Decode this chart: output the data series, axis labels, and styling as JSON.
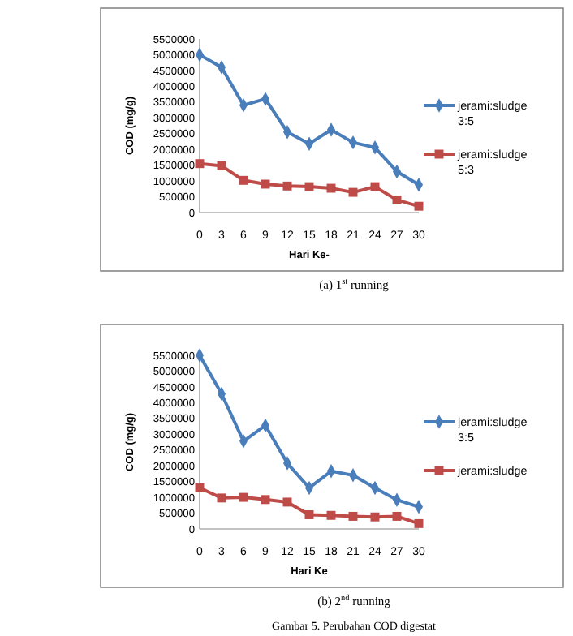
{
  "chart_data": [
    {
      "type": "line",
      "xlabel": "Hari Ke-",
      "ylabel": "COD (mg/g)",
      "categories": [
        "0",
        "3",
        "6",
        "9",
        "12",
        "15",
        "18",
        "21",
        "24",
        "27",
        "30"
      ],
      "ylim": [
        0,
        5500000
      ],
      "yticks": [
        0,
        500000,
        1000000,
        1500000,
        2000000,
        2500000,
        3000000,
        3500000,
        4000000,
        4500000,
        5000000,
        5500000
      ],
      "grid": false,
      "legend": "right",
      "line_style": "solid",
      "annotations": [
        "(a) 1$^{st}$ running"
      ],
      "series": [
        {
          "name": "jerami:sludge 3:5",
          "color": "#4a7ebb",
          "marker": "diamond",
          "values": [
            5000000,
            4600000,
            3400000,
            3600000,
            2550000,
            2180000,
            2620000,
            2220000,
            2060000,
            1300000,
            880000
          ]
        },
        {
          "name": "jerami:sludge 5:3",
          "color": "#be4b48",
          "marker": "square",
          "values": [
            1550000,
            1480000,
            1020000,
            900000,
            840000,
            820000,
            770000,
            640000,
            820000,
            400000,
            200000
          ]
        }
      ]
    },
    {
      "type": "line",
      "xlabel": "Hari Ke",
      "ylabel": "COD (mg/g)",
      "categories": [
        "0",
        "3",
        "6",
        "9",
        "12",
        "15",
        "18",
        "21",
        "24",
        "27",
        "30"
      ],
      "ylim": [
        0,
        5500000
      ],
      "yticks": [
        0,
        500000,
        1000000,
        1500000,
        2000000,
        2500000,
        3000000,
        3500000,
        4000000,
        4500000,
        5000000,
        5500000
      ],
      "grid": false,
      "legend": "right",
      "line_style": "solid",
      "annotations": [
        "(b) 2$^{nd}$ running",
        "Gambar 5. Perubahan COD digestat"
      ],
      "series": [
        {
          "name": "jerami:sludge 3:5",
          "color": "#4a7ebb",
          "marker": "diamond",
          "values": [
            5500000,
            4280000,
            2780000,
            3280000,
            2080000,
            1300000,
            1830000,
            1700000,
            1300000,
            920000,
            700000
          ]
        },
        {
          "name": "jerami:sludge",
          "color": "#be4b48",
          "marker": "square",
          "values": [
            1300000,
            980000,
            1000000,
            930000,
            850000,
            450000,
            430000,
            400000,
            380000,
            400000,
            170000
          ]
        }
      ]
    }
  ]
}
